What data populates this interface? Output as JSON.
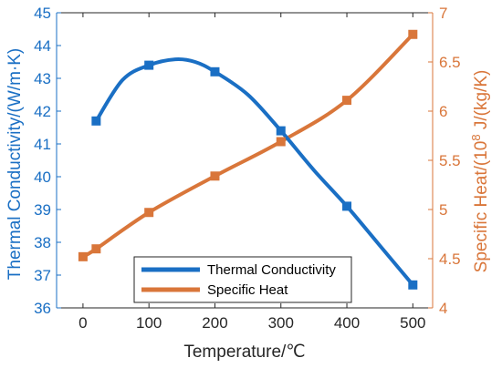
{
  "chart_data": {
    "type": "line",
    "xlabel": "Temperature/℃",
    "xlim": [
      -40,
      530
    ],
    "xticks": [
      0,
      100,
      200,
      300,
      400,
      500
    ],
    "y_left": {
      "label": "Thermal Conductivity/(W/m·K)",
      "lim": [
        36,
        45
      ],
      "ticks": [
        36,
        37,
        38,
        39,
        40,
        41,
        42,
        43,
        44,
        45
      ],
      "color": "#1a6fc4"
    },
    "y_right": {
      "label_prefix": "Specific Heat/(10",
      "label_sup": "8",
      "label_suffix": " J/(kg/K)",
      "lim": [
        4,
        7
      ],
      "ticks": [
        "4",
        "4.5",
        "5",
        "5.5",
        "6",
        "6.5",
        "7"
      ],
      "tick_values": [
        4,
        4.5,
        5,
        5.5,
        6,
        6.5,
        7
      ],
      "color": "#d9763a"
    },
    "series": [
      {
        "name": "Thermal Conductivity",
        "axis": "left",
        "color": "#1a6fc4",
        "x": [
          20,
          100,
          200,
          300,
          400,
          500
        ],
        "y": [
          41.7,
          43.4,
          43.2,
          41.4,
          39.1,
          36.7
        ],
        "curve_x": [
          20,
          60,
          100,
          140,
          170,
          200,
          250,
          300,
          350,
          400,
          450,
          500
        ],
        "curve_y": [
          41.7,
          42.95,
          43.4,
          43.58,
          43.5,
          43.2,
          42.5,
          41.4,
          40.2,
          39.1,
          37.9,
          36.7
        ]
      },
      {
        "name": "Specific Heat",
        "axis": "right",
        "color": "#d9763a",
        "x": [
          0,
          20,
          100,
          200,
          300,
          400,
          500
        ],
        "y": [
          4.52,
          4.6,
          4.97,
          5.34,
          5.69,
          6.11,
          6.78
        ]
      }
    ],
    "legend_position": "bottom-center",
    "grid": false
  }
}
